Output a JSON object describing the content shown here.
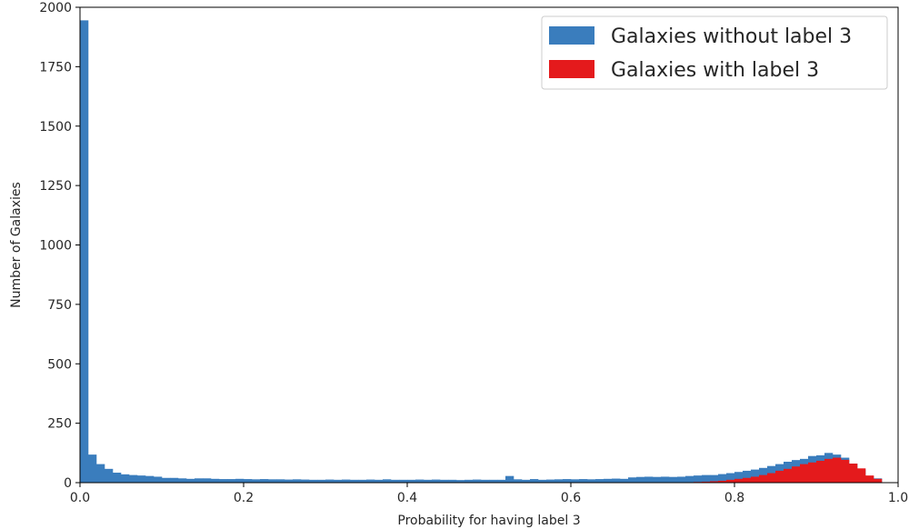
{
  "chart_data": {
    "type": "bar",
    "xlabel": "Probability for having label 3",
    "ylabel": "Number of Galaxies",
    "xlim": [
      0,
      1
    ],
    "ylim": [
      0,
      2000
    ],
    "grid": false,
    "legend_position": "top-right",
    "bin_width": 0.01,
    "x_ticks": [
      "0.0",
      "0.2",
      "0.4",
      "0.6",
      "0.8",
      "1.0"
    ],
    "y_ticks": [
      "0",
      "250",
      "500",
      "750",
      "1000",
      "1250",
      "1500",
      "1750",
      "2000"
    ],
    "series": [
      {
        "name": "Galaxies without label 3",
        "color": "#3a7dbd",
        "values": [
          1945,
          118,
          78,
          58,
          42,
          35,
          32,
          30,
          28,
          25,
          20,
          20,
          18,
          16,
          18,
          18,
          16,
          15,
          15,
          16,
          15,
          14,
          15,
          14,
          14,
          13,
          14,
          13,
          12,
          12,
          13,
          12,
          13,
          12,
          12,
          13,
          12,
          14,
          12,
          12,
          12,
          13,
          12,
          13,
          12,
          12,
          11,
          12,
          13,
          12,
          12,
          12,
          28,
          14,
          12,
          15,
          12,
          13,
          14,
          15,
          14,
          15,
          14,
          15,
          16,
          17,
          16,
          22,
          24,
          25,
          24,
          25,
          24,
          25,
          28,
          30,
          32,
          32,
          36,
          40,
          45,
          50,
          55,
          62,
          70,
          78,
          88,
          95,
          100,
          112,
          115,
          125,
          118,
          105,
          80,
          55,
          28,
          18,
          0,
          0
        ]
      },
      {
        "name": "Galaxies with label 3",
        "color": "#e41a1c",
        "values": [
          0,
          0,
          0,
          0,
          0,
          0,
          0,
          0,
          0,
          0,
          0,
          0,
          0,
          0,
          0,
          0,
          0,
          0,
          0,
          0,
          0,
          0,
          0,
          0,
          0,
          0,
          0,
          0,
          0,
          0,
          0,
          0,
          0,
          0,
          0,
          0,
          0,
          0,
          0,
          0,
          0,
          0,
          0,
          0,
          0,
          0,
          0,
          0,
          0,
          0,
          0,
          0,
          0,
          0,
          0,
          0,
          0,
          0,
          0,
          0,
          0,
          0,
          0,
          0,
          0,
          0,
          0,
          0,
          0,
          0,
          0,
          0,
          0,
          0,
          2,
          3,
          4,
          6,
          8,
          12,
          16,
          20,
          25,
          32,
          40,
          50,
          58,
          68,
          78,
          85,
          92,
          100,
          105,
          96,
          80,
          60,
          30,
          16,
          0,
          0
        ]
      }
    ]
  }
}
